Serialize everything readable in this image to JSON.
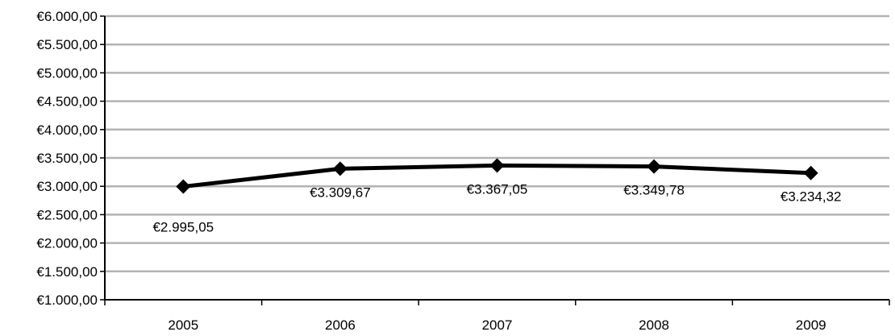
{
  "chart_data": {
    "type": "line",
    "categories": [
      "2005",
      "2006",
      "2007",
      "2008",
      "2009"
    ],
    "series": [
      {
        "values": [
          2995.05,
          3309.67,
          3367.05,
          3349.78,
          3234.32
        ],
        "data_labels": [
          "€2.995,05",
          "€3.309,67",
          "€3.367,05",
          "€3.349,78",
          "€3.234,32"
        ],
        "color": "#000000",
        "marker": "diamond"
      }
    ],
    "y_ticks": [
      1000,
      1500,
      2000,
      2500,
      3000,
      3500,
      4000,
      4500,
      5000,
      5500,
      6000
    ],
    "y_tick_labels": [
      "€1.000,00",
      "€1.500,00",
      "€2.000,00",
      "€2.500,00",
      "€3.000,00",
      "€3.500,00",
      "€4.000,00",
      "€4.500,00",
      "€5.000,00",
      "€5.500,00",
      "€6.000,00"
    ],
    "ylim": [
      1000,
      6000
    ],
    "title": "",
    "xlabel": "",
    "ylabel": "",
    "grid": true,
    "legend": "none",
    "gridline_color": "#b3b3b3",
    "axis_color": "#000000"
  }
}
